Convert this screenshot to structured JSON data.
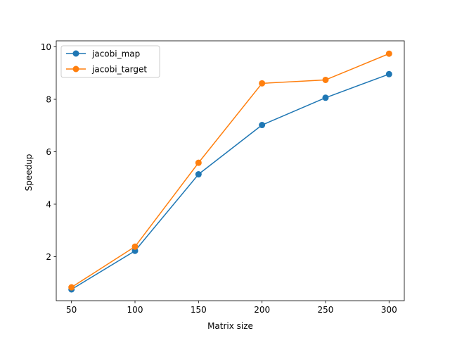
{
  "chart_data": {
    "type": "line",
    "title": "",
    "xlabel": "Matrix size",
    "ylabel": "Speedup",
    "x": [
      50,
      100,
      150,
      200,
      250,
      300
    ],
    "xticks": [
      50,
      100,
      150,
      200,
      250,
      300
    ],
    "xtick_labels": [
      "50",
      "100",
      "150",
      "200",
      "250",
      "300"
    ],
    "yticks": [
      2,
      4,
      6,
      8,
      10
    ],
    "ytick_labels": [
      "2",
      "4",
      "6",
      "8",
      "10"
    ],
    "xlim": [
      38,
      312
    ],
    "ylim": [
      0.32,
      10.23
    ],
    "grid": false,
    "legend_position": "top-left",
    "series": [
      {
        "name": "jacobi_map",
        "color": "#1f77b4",
        "marker": "circle",
        "values": [
          0.75,
          2.22,
          5.14,
          7.02,
          8.06,
          8.96
        ]
      },
      {
        "name": "jacobi_target",
        "color": "#ff7f0e",
        "marker": "circle",
        "values": [
          0.83,
          2.38,
          5.58,
          8.61,
          8.74,
          9.74
        ]
      }
    ]
  }
}
